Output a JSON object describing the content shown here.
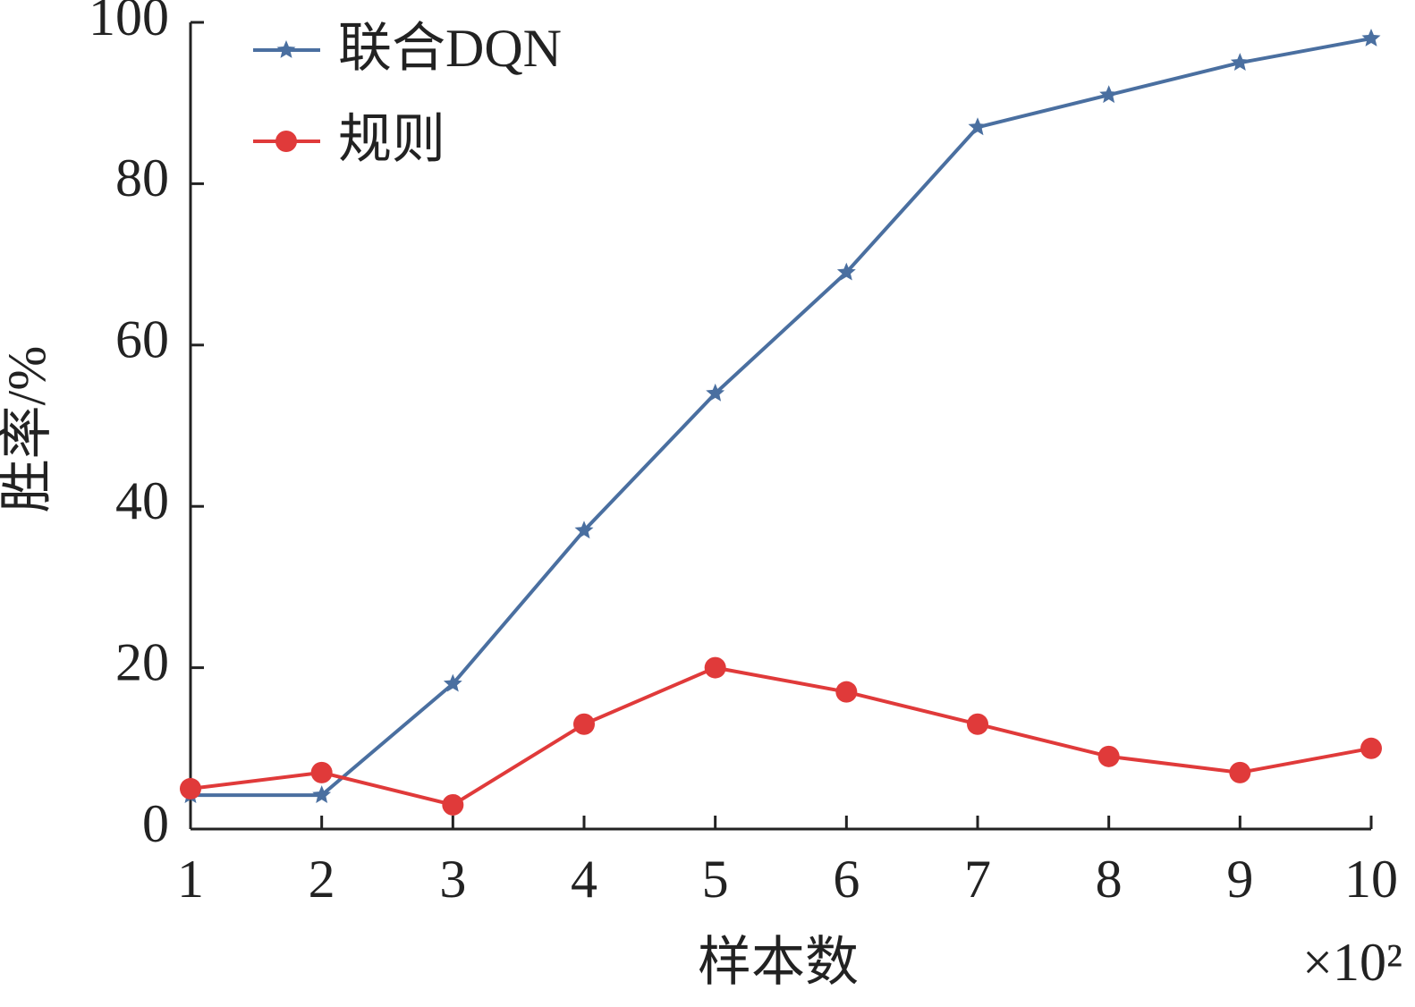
{
  "chart_data": {
    "type": "line",
    "x_label": "样本数",
    "y_label": "胜率/%",
    "x_multiplier": "×10²",
    "x": [
      1,
      2,
      3,
      4,
      5,
      6,
      7,
      8,
      9,
      10
    ],
    "series": [
      {
        "name": "联合DQN",
        "color": "#4a6fa0",
        "marker": "star",
        "values": [
          4.2,
          4.2,
          18,
          37,
          54,
          69,
          87,
          91,
          95,
          98
        ]
      },
      {
        "name": "规则",
        "color": "#e03a3a",
        "marker": "circle",
        "values": [
          5,
          7,
          3,
          13,
          20,
          17,
          13,
          9,
          7,
          10
        ]
      }
    ],
    "xlim": [
      1,
      10
    ],
    "xticks": [
      1,
      2,
      3,
      4,
      5,
      6,
      7,
      8,
      9,
      10
    ],
    "ylim": [
      0,
      100
    ],
    "yticks": [
      0,
      20,
      40,
      60,
      80,
      100
    ],
    "grid": false,
    "legend": "top-left"
  }
}
